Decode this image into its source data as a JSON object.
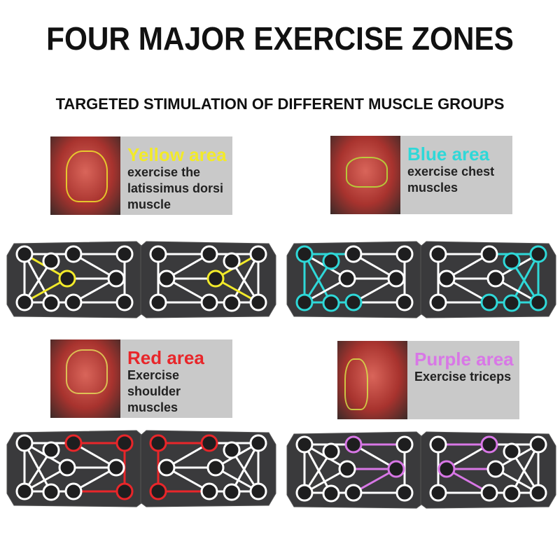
{
  "title": "FOUR MAJOR EXERCISE ZONES",
  "subtitle": "TARGETED STIMULATION OF DIFFERENT MUSCLE GROUPS",
  "zones": [
    {
      "heading": "Yellow area",
      "lines": [
        "exercise the",
        "latissimus dorsi",
        "muscle"
      ],
      "color": "#f2ea2a"
    },
    {
      "heading": "Blue area",
      "lines": [
        "exercise chest",
        "muscles"
      ],
      "color": "#2fd8d8"
    },
    {
      "heading": "Red area",
      "lines": [
        "Exercise shoulder",
        "muscles"
      ],
      "color": "#e8262a"
    },
    {
      "heading": "Purple area",
      "lines": [
        "Exercise triceps"
      ],
      "color": "#d877e6"
    }
  ]
}
